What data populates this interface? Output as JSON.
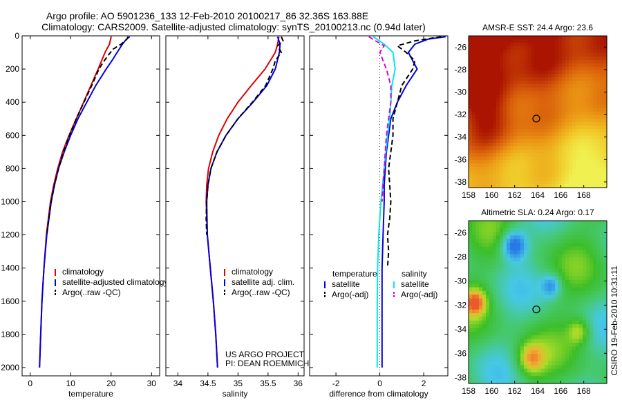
{
  "title_line1": "Argo profile: AO 5901236_133 12-Feb-2010 20100217_86 32.36S 163.88E",
  "title_line2": "Climatology: CARS2009. Satellite-adjusted climatology: synTS_20100213.nc (0.94d later)",
  "footer_project": "US ARGO PROJECT",
  "footer_pi": "PI: DEAN ROEMMICH",
  "vertical_stamp": "CSIRO 19-Feb-2010 10:31:11",
  "colors": {
    "climatology": "#dd0000",
    "satellite": "#0000dd",
    "argo": "#000000",
    "satellite_salinity": "#00e8ee",
    "argo_adj_salinity": "#dd00dd",
    "map_marker": "#000000"
  },
  "chart_data": [
    {
      "type": "line",
      "panel": "temperature",
      "xlabel": "temperature",
      "ylabel": "",
      "xlim": [
        -2,
        32
      ],
      "ylim": [
        2050,
        0
      ],
      "xticks": [
        0,
        10,
        20,
        30
      ],
      "yticks": [
        0,
        200,
        400,
        600,
        800,
        1000,
        1200,
        1400,
        1600,
        1800,
        2000
      ],
      "legend": [
        "climatology",
        "satellite-adjusted climatology",
        "Argo(..raw -QC)"
      ],
      "series": [
        {
          "name": "climatology",
          "color": "#dd0000",
          "style": "solid",
          "depth": [
            5,
            50,
            100,
            200,
            300,
            400,
            500,
            600,
            700,
            800,
            900,
            1000,
            1200,
            1400,
            1600,
            1800,
            2000
          ],
          "values": [
            20.0,
            19.6,
            18.5,
            16.8,
            15.0,
            13.2,
            11.4,
            9.6,
            8.0,
            6.8,
            5.8,
            5.0,
            4.0,
            3.4,
            2.9,
            2.6,
            2.3
          ]
        },
        {
          "name": "satellite-adjusted climatology",
          "color": "#0000dd",
          "style": "solid",
          "depth": [
            5,
            20,
            50,
            100,
            150,
            200,
            300,
            400,
            500,
            600,
            700,
            800,
            900,
            1000,
            1200,
            1400,
            1600,
            1800,
            2000
          ],
          "values": [
            24.6,
            23.8,
            22.8,
            21.5,
            20.2,
            18.8,
            16.2,
            14.0,
            11.8,
            10.0,
            8.4,
            7.0,
            6.0,
            5.2,
            4.1,
            3.4,
            2.9,
            2.6,
            2.3
          ]
        },
        {
          "name": "Argo(..raw -QC)",
          "color": "#000000",
          "style": "dashed",
          "depth": [
            5,
            20,
            50,
            80,
            120,
            160,
            200,
            300,
            400,
            500,
            600,
            700,
            800,
            900,
            1000,
            1100,
            1200
          ],
          "values": [
            24.2,
            23.9,
            22.5,
            20.5,
            19.2,
            18.0,
            17.0,
            15.2,
            13.3,
            11.4,
            9.7,
            8.2,
            7.0,
            6.0,
            5.2,
            4.6,
            4.1
          ]
        }
      ]
    },
    {
      "type": "line",
      "panel": "salinity",
      "xlabel": "salinity",
      "ylabel": "",
      "xlim": [
        33.8,
        36.1
      ],
      "ylim": [
        2050,
        0
      ],
      "xticks": [
        34,
        34.5,
        35,
        35.5,
        36
      ],
      "legend": [
        "climatology",
        "satellite adj. clim.",
        "Argo(..raw -QC)"
      ],
      "series": [
        {
          "name": "climatology",
          "color": "#dd0000",
          "style": "solid",
          "depth": [
            5,
            50,
            100,
            200,
            300,
            400,
            500,
            600,
            700,
            800,
            900,
            1000,
            1200,
            1400,
            1600,
            1800,
            2000
          ],
          "values": [
            35.68,
            35.66,
            35.62,
            35.45,
            35.22,
            35.0,
            34.82,
            34.68,
            34.58,
            34.51,
            34.48,
            34.47,
            34.49,
            34.54,
            34.59,
            34.63,
            34.66
          ]
        },
        {
          "name": "satellite adj. clim.",
          "color": "#0000dd",
          "style": "solid",
          "depth": [
            5,
            50,
            100,
            200,
            300,
            400,
            500,
            600,
            700,
            800,
            900,
            1000,
            1200,
            1400,
            1600,
            1800,
            2000
          ],
          "values": [
            35.66,
            35.7,
            35.69,
            35.62,
            35.48,
            35.25,
            35.0,
            34.8,
            34.65,
            34.55,
            34.5,
            34.48,
            34.49,
            34.54,
            34.59,
            34.63,
            34.66
          ]
        },
        {
          "name": "Argo(..raw -QC)",
          "color": "#000000",
          "style": "dashed",
          "depth": [
            5,
            30,
            60,
            100,
            150,
            200,
            300,
            400,
            500,
            600,
            700,
            800,
            900,
            1000,
            1100,
            1200
          ],
          "values": [
            35.72,
            35.75,
            35.66,
            35.72,
            35.62,
            35.58,
            35.46,
            35.24,
            35.0,
            34.8,
            34.65,
            34.55,
            34.5,
            34.48,
            34.47,
            34.48
          ]
        }
      ]
    },
    {
      "type": "line",
      "panel": "difference",
      "xlabel": "difference from climatology",
      "ylabel": "",
      "xlim": [
        -3.2,
        3.1
      ],
      "ylim": [
        2050,
        0
      ],
      "xticks": [
        -2,
        0,
        2
      ],
      "legend_groups": [
        {
          "title": "temperature",
          "items": [
            "satellite",
            "Argo(-adj)"
          ]
        },
        {
          "title": "salinity",
          "items": [
            "satellite",
            "Argo(-adj)"
          ]
        }
      ],
      "series": [
        {
          "name": "temperature satellite",
          "color": "#0000dd",
          "style": "solid",
          "depth": [
            5,
            20,
            50,
            100,
            150,
            200,
            300,
            400,
            500,
            600,
            700,
            800,
            900,
            1000,
            1200,
            1400,
            1600,
            1800,
            2000
          ],
          "values": [
            3.0,
            2.2,
            1.6,
            1.3,
            1.5,
            1.7,
            1.2,
            0.8,
            0.5,
            0.4,
            0.3,
            0.25,
            0.2,
            0.2,
            0.15,
            0.1,
            0.1,
            0.1,
            0.1
          ]
        },
        {
          "name": "temperature Argo(-adj)",
          "color": "#000000",
          "style": "dashed",
          "depth": [
            5,
            30,
            60,
            100,
            150,
            200,
            300,
            400,
            500,
            600,
            700,
            800,
            900,
            1000,
            1100,
            1200,
            1300,
            1400
          ],
          "values": [
            2.8,
            1.6,
            0.8,
            1.2,
            1.6,
            1.5,
            1.0,
            0.8,
            0.6,
            0.6,
            0.5,
            0.4,
            0.45,
            0.5,
            0.45,
            0.35,
            0.4,
            0.35
          ]
        },
        {
          "name": "salinity satellite",
          "color": "#00e8ee",
          "style": "solid",
          "depth": [
            5,
            50,
            100,
            200,
            300,
            400,
            500,
            600,
            800,
            1000,
            1200,
            1400,
            1600,
            1800,
            2000
          ],
          "values": [
            -0.3,
            0.2,
            0.6,
            0.7,
            0.55,
            0.5,
            0.45,
            0.35,
            0.2,
            0.05,
            -0.05,
            -0.1,
            -0.12,
            -0.12,
            -0.12
          ]
        },
        {
          "name": "salinity Argo(-adj)",
          "color": "#dd00dd",
          "style": "dashed",
          "depth": [
            5,
            30,
            60,
            100,
            200,
            300,
            400,
            500,
            600,
            700,
            800,
            900,
            1000
          ],
          "values": [
            -0.5,
            -0.2,
            0.2,
            0.0,
            0.3,
            0.5,
            0.5,
            0.4,
            0.3,
            0.25,
            0.2,
            0.15,
            0.1
          ]
        }
      ]
    },
    {
      "type": "heatmap",
      "panel": "map-sst",
      "title": "AMSR-E SST: 24.4 Argo: 23.6",
      "xlim": [
        158,
        170
      ],
      "ylim": [
        -38.5,
        -25
      ],
      "xticks": [
        158,
        160,
        162,
        164,
        166,
        168
      ],
      "yticks": [
        -26,
        -28,
        -30,
        -32,
        -34,
        -36,
        -38
      ],
      "marker": {
        "lon": 163.88,
        "lat": -32.36
      }
    },
    {
      "type": "heatmap",
      "panel": "map-sla",
      "title": "Altimetric SLA: 0.24 Argo: 0.17",
      "xlim": [
        158,
        170
      ],
      "ylim": [
        -38.5,
        -25
      ],
      "xticks": [
        158,
        160,
        162,
        164,
        166,
        168
      ],
      "yticks": [
        -26,
        -28,
        -30,
        -32,
        -34,
        -36,
        -38
      ],
      "marker": {
        "lon": 163.88,
        "lat": -32.36
      }
    }
  ]
}
